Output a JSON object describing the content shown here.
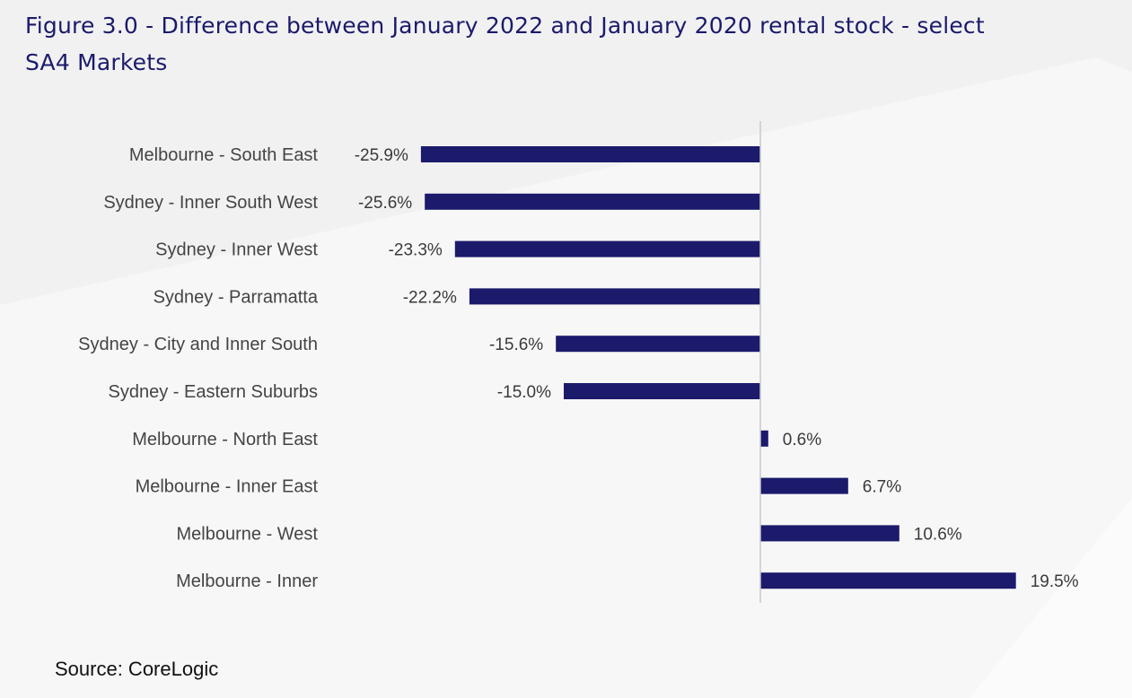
{
  "page": {
    "title": "Figure 3.0 - Difference between January 2022 and January 2020 rental stock - select SA4 Markets",
    "source": "Source: CoreLogic"
  },
  "colors": {
    "bar": "#1b1a6b",
    "title": "#1b1a6b",
    "background": "#f1f1f2",
    "axis": "#c8c8cc"
  },
  "chart_data": {
    "type": "bar",
    "orientation": "horizontal",
    "title": "Figure 3.0 - Difference between January 2022 and January 2020 rental stock - select SA4 Markets",
    "xlabel": "",
    "ylabel": "",
    "value_format": "percent, 1 decimal",
    "xlim": [
      -26,
      20
    ],
    "grid": false,
    "legend": "none",
    "categories": [
      "Melbourne - South East",
      "Sydney - Inner South West",
      "Sydney - Inner West",
      "Sydney - Parramatta",
      "Sydney - City and Inner South",
      "Sydney - Eastern Suburbs",
      "Melbourne - North East",
      "Melbourne - Inner East",
      "Melbourne - West",
      "Melbourne - Inner"
    ],
    "values": [
      -25.9,
      -25.6,
      -23.3,
      -22.2,
      -15.6,
      -15.0,
      0.6,
      6.7,
      10.6,
      19.5
    ],
    "data_labels": [
      "-25.9%",
      "-25.6%",
      "-23.3%",
      "-22.2%",
      "-15.6%",
      "-15.0%",
      "0.6%",
      "6.7%",
      "10.6%",
      "19.5%"
    ]
  }
}
